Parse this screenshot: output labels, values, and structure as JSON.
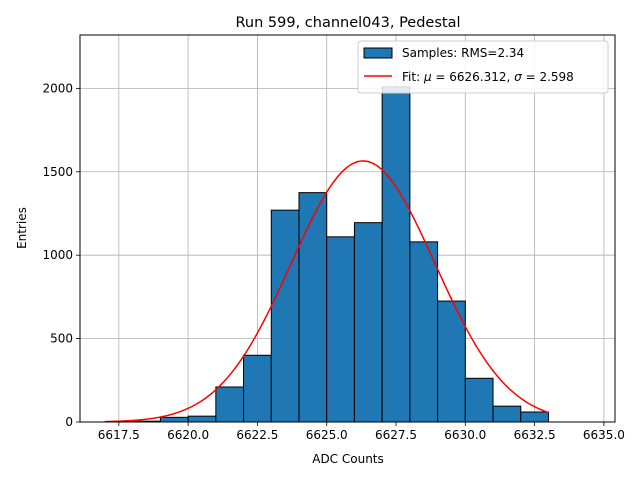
{
  "chart_data": {
    "type": "bar",
    "title": "Run 599, channel043, Pedestal",
    "xlabel": "ADC Counts",
    "ylabel": "Entries",
    "xlim": [
      6616.1,
      6635.4
    ],
    "ylim": [
      0,
      2320
    ],
    "xticks": [
      6617.5,
      6620.0,
      6622.5,
      6625.0,
      6627.5,
      6630.0,
      6632.5,
      6635.0
    ],
    "xtick_labels": [
      "6617.5",
      "6620.0",
      "6622.5",
      "6625.0",
      "6627.5",
      "6630.0",
      "6632.5",
      "6635.0"
    ],
    "yticks": [
      0,
      500,
      1000,
      1500,
      2000
    ],
    "ytick_labels": [
      "0",
      "500",
      "1000",
      "1500",
      "2000"
    ],
    "grid": true,
    "legend_position": "top-right",
    "bin_edges": [
      6617.0,
      6618.0,
      6619.0,
      6620.0,
      6621.0,
      6622.0,
      6623.0,
      6624.0,
      6625.0,
      6626.0,
      6627.0,
      6628.0,
      6629.0,
      6630.0,
      6631.0,
      6632.0,
      6633.0
    ],
    "hist_counts": [
      2,
      5,
      28,
      35,
      210,
      400,
      1270,
      1375,
      1110,
      1195,
      2010,
      1080,
      725,
      262,
      95,
      60
    ],
    "hist_label": "Samples: RMS=2.34",
    "hist_color": "#1f77b4",
    "fit": {
      "label_prefix": "Fit: ",
      "label_mu": "μ",
      "label_mid": " = 6626.312, ",
      "label_sigma": "σ",
      "label_end": " = 2.598",
      "mu": 6626.312,
      "sigma": 2.598,
      "amplitude": 1565,
      "x_range": [
        6617.0,
        6633.0
      ],
      "color": "#ff0000"
    }
  }
}
